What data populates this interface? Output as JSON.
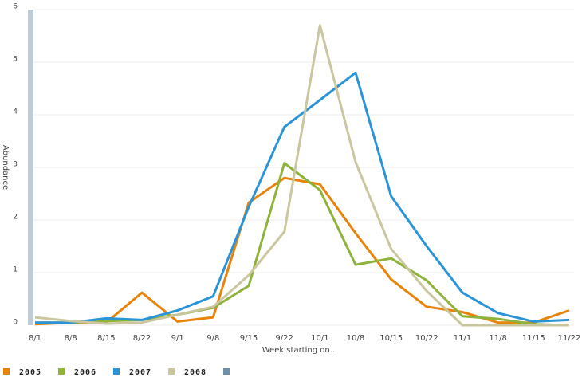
{
  "chart_data": {
    "type": "line",
    "x_label": "Week starting on...",
    "y_label": "Abundance",
    "categories": [
      "8/1",
      "8/8",
      "8/15",
      "8/22",
      "9/1",
      "9/8",
      "9/15",
      "9/22",
      "10/1",
      "10/8",
      "10/15",
      "10/22",
      "11/1",
      "11/8",
      "11/15",
      "11/22"
    ],
    "series": [
      {
        "name": "2005",
        "color": "#e8830c",
        "values": [
          0.02,
          0.05,
          0.05,
          0.62,
          0.07,
          0.15,
          2.33,
          2.8,
          2.68,
          1.75,
          0.87,
          0.35,
          0.25,
          0.05,
          0.05,
          0.28
        ]
      },
      {
        "name": "2006",
        "color": "#8fb33a",
        "values": [
          0.05,
          0.05,
          0.08,
          0.1,
          0.2,
          0.33,
          0.75,
          3.08,
          2.57,
          1.15,
          1.27,
          0.85,
          0.17,
          0.12,
          0.02,
          0.0
        ]
      },
      {
        "name": "2007",
        "color": "#2b94d6",
        "values": [
          0.05,
          0.05,
          0.13,
          0.1,
          0.28,
          0.55,
          2.25,
          3.77,
          4.28,
          4.8,
          2.45,
          1.5,
          0.62,
          0.23,
          0.07,
          0.1
        ]
      },
      {
        "name": "2008",
        "color": "#c9c6a0",
        "values": [
          0.15,
          0.08,
          0.03,
          0.05,
          0.2,
          0.35,
          0.95,
          1.78,
          5.7,
          3.1,
          1.45,
          0.65,
          0.0,
          0.0,
          0.0,
          0.0
        ]
      }
    ],
    "ylim": [
      0,
      6
    ],
    "yticks": [
      0,
      1,
      2,
      3,
      4,
      5,
      6
    ],
    "grid": true,
    "legend": "bottom"
  }
}
